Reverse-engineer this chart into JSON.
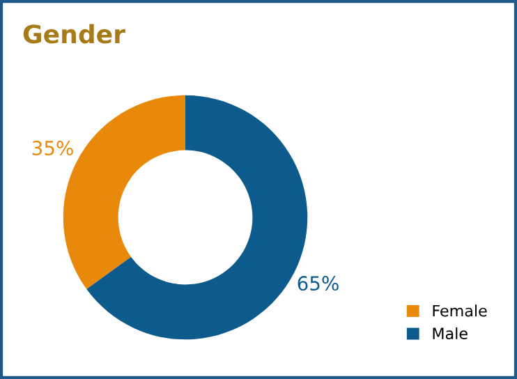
{
  "chart_data": {
    "type": "donut",
    "title": "Gender",
    "categories": [
      "Female",
      "Male"
    ],
    "values": [
      35,
      65
    ],
    "colors": [
      "#e8890c",
      "#0d5a8c"
    ],
    "value_labels": [
      "35%",
      "65%"
    ],
    "legend": "bottom right"
  }
}
